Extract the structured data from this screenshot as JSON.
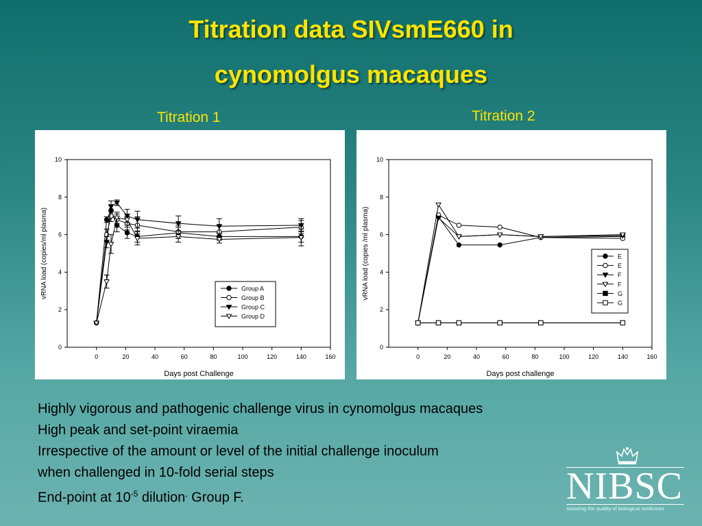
{
  "slide": {
    "title_line1": "Titration data SIVsmE660 in",
    "title_line2": "cynomolgus macaques",
    "panel1_label": "Titration 1",
    "panel2_label": "Titration 2",
    "bullets": [
      "Highly vigorous and pathogenic challenge virus in cynomolgus macaques",
      "High peak and set-point viraemia",
      "Irrespective of the amount or level of the initial challenge inoculum",
      "when challenged in 10-fold serial steps"
    ],
    "last_bullet": {
      "prefix": "End-point at 10",
      "exponent": "-5",
      "middle": " dilution",
      "comma": ",",
      "suffix": " Group F."
    },
    "logo": {
      "text": "NIBSC",
      "tagline": "Assuring the quality of biological medicines",
      "icon": "crown-icon"
    },
    "colors": {
      "title": "#ffe400",
      "background_top": "#0f6e6c",
      "background_bottom": "#6cb3b0"
    }
  },
  "chart_data": [
    {
      "type": "line",
      "title": "",
      "xlabel": "Days post Challenge",
      "ylabel": "vRNA  load (copies/ml plasma)",
      "xlim": [
        -20,
        160
      ],
      "ylim": [
        0,
        10
      ],
      "xticks": [
        0,
        20,
        40,
        60,
        80,
        100,
        120,
        140,
        160
      ],
      "yticks": [
        0,
        2,
        4,
        6,
        8,
        10
      ],
      "legend_position": "lower-right",
      "series": [
        {
          "name": "Group A",
          "marker": "circle-filled",
          "x": [
            0,
            7,
            10,
            14,
            21,
            28,
            56,
            84,
            140
          ],
          "y": [
            1.3,
            6.8,
            7.3,
            6.5,
            6.1,
            5.9,
            6.1,
            5.9,
            5.9
          ],
          "err": [
            0,
            0.15,
            0.3,
            0.35,
            0.3,
            0.3,
            0.3,
            0.2,
            0.3
          ]
        },
        {
          "name": "Group B",
          "marker": "circle-open",
          "x": [
            0,
            7,
            10,
            14,
            21,
            28,
            56,
            84,
            140
          ],
          "y": [
            1.3,
            6.0,
            7.0,
            6.8,
            6.6,
            6.5,
            6.15,
            6.15,
            6.4
          ],
          "err": [
            0,
            0.3,
            0.3,
            0.3,
            0.35,
            0.45,
            0.35,
            0.3,
            0.35
          ]
        },
        {
          "name": "Group C",
          "marker": "triangle-down-filled",
          "x": [
            0,
            7,
            10,
            14,
            21,
            28,
            56,
            84,
            140
          ],
          "y": [
            1.3,
            5.6,
            7.5,
            7.7,
            7.0,
            6.8,
            6.6,
            6.45,
            6.5
          ],
          "err": [
            0,
            0.3,
            0.3,
            0.15,
            0.35,
            0.45,
            0.4,
            0.4,
            0.35
          ]
        },
        {
          "name": "Group D",
          "marker": "triangle-down-open",
          "x": [
            0,
            7,
            10,
            14,
            21,
            28,
            56,
            84,
            140
          ],
          "y": [
            1.3,
            3.5,
            5.5,
            6.9,
            6.8,
            5.8,
            5.9,
            5.75,
            5.85
          ],
          "err": [
            0,
            0.35,
            0.5,
            0.3,
            0.3,
            0.35,
            0.3,
            0.2,
            0.45
          ]
        }
      ]
    },
    {
      "type": "line",
      "title": "",
      "xlabel": "Days post challenge",
      "ylabel": "vRNA load (copies /ml plasma)",
      "xlim": [
        -20,
        160
      ],
      "ylim": [
        0,
        10
      ],
      "xticks": [
        0,
        20,
        40,
        60,
        80,
        100,
        120,
        140,
        160
      ],
      "yticks": [
        0,
        2,
        4,
        6,
        8,
        10
      ],
      "legend_position": "right",
      "series": [
        {
          "name": "E",
          "marker": "circle-filled",
          "x": [
            0,
            14,
            28,
            56,
            84,
            140
          ],
          "y": [
            1.3,
            6.95,
            5.45,
            5.45,
            5.85,
            5.9
          ]
        },
        {
          "name": "E",
          "marker": "circle-open",
          "x": [
            0,
            14,
            28,
            56,
            84,
            140
          ],
          "y": [
            1.3,
            7.05,
            6.5,
            6.4,
            5.85,
            5.8
          ]
        },
        {
          "name": "F",
          "marker": "triangle-down-filled",
          "x": [
            0,
            14,
            28,
            56,
            84,
            140
          ],
          "y": [
            1.3,
            6.9,
            5.9,
            6.0,
            5.9,
            5.95
          ]
        },
        {
          "name": "F",
          "marker": "triangle-down-open",
          "x": [
            0,
            14,
            28,
            56,
            84,
            140
          ],
          "y": [
            1.3,
            7.6,
            5.9,
            6.0,
            5.9,
            6.0
          ]
        },
        {
          "name": "G",
          "marker": "square-filled",
          "x": [
            0,
            14,
            28,
            56,
            84,
            140
          ],
          "y": [
            1.3,
            1.3,
            1.3,
            1.3,
            1.3,
            1.3
          ]
        },
        {
          "name": "G",
          "marker": "square-open",
          "x": [
            0,
            14,
            28,
            56,
            84,
            140
          ],
          "y": [
            1.3,
            1.3,
            1.3,
            1.3,
            1.3,
            1.3
          ]
        }
      ]
    }
  ]
}
